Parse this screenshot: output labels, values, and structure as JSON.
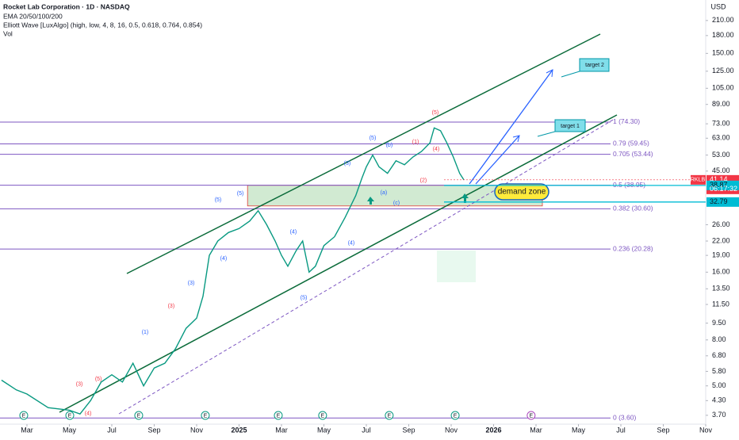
{
  "chart_data": {
    "type": "line",
    "title": "Rocket Lab Corporation · 1D · NASDAQ",
    "indicators": [
      "EMA 20/50/100/200",
      "Elliott Wave [LuxAlgo] (high, low, 4, 8, 16, 0.5, 0.618, 0.764, 0.854)",
      "Vol"
    ],
    "currency": "USD",
    "log_scale": true,
    "xlim": [
      0.73,
      34
    ],
    "ylim": [
      3.38,
      259
    ],
    "xticks": [
      {
        "value": 2,
        "label": "Mar"
      },
      {
        "value": 4,
        "label": "May"
      },
      {
        "value": 6,
        "label": "Jul"
      },
      {
        "value": 8,
        "label": "Sep"
      },
      {
        "value": 10,
        "label": "Nov"
      },
      {
        "value": 12,
        "label": "2025"
      },
      {
        "value": 14,
        "label": "Mar"
      },
      {
        "value": 16,
        "label": "May"
      },
      {
        "value": 18,
        "label": "Jul"
      },
      {
        "value": 20,
        "label": "Sep"
      },
      {
        "value": 22,
        "label": "Nov"
      },
      {
        "value": 24,
        "label": "2026"
      },
      {
        "value": 26,
        "label": "Mar"
      },
      {
        "value": 28,
        "label": "May"
      },
      {
        "value": 30,
        "label": "Jul"
      },
      {
        "value": 32,
        "label": "Sep"
      },
      {
        "value": 34,
        "label": "Nov"
      }
    ],
    "yticks": [
      {
        "value": 210,
        "label": "210.00"
      },
      {
        "value": 180,
        "label": "180.00"
      },
      {
        "value": 150,
        "label": "150.00"
      },
      {
        "value": 125,
        "label": "125.00"
      },
      {
        "value": 105,
        "label": "105.00"
      },
      {
        "value": 89,
        "label": "89.00"
      },
      {
        "value": 73,
        "label": "73.00"
      },
      {
        "value": 63,
        "label": "63.00"
      },
      {
        "value": 53,
        "label": "53.00"
      },
      {
        "value": 45,
        "label": "45.00"
      },
      {
        "value": 26,
        "label": "26.00"
      },
      {
        "value": 22,
        "label": "22.00"
      },
      {
        "value": 19,
        "label": "19.00"
      },
      {
        "value": 16,
        "label": "16.00"
      },
      {
        "value": 13.5,
        "label": "13.50"
      },
      {
        "value": 11.5,
        "label": "11.50"
      },
      {
        "value": 9.5,
        "label": "9.50"
      },
      {
        "value": 8,
        "label": "8.00"
      },
      {
        "value": 6.8,
        "label": "6.80"
      },
      {
        "value": 5.8,
        "label": "5.80"
      },
      {
        "value": 5,
        "label": "5.00"
      },
      {
        "value": 4.3,
        "label": "4.30"
      },
      {
        "value": 3.7,
        "label": "3.70"
      }
    ],
    "x": [
      0.8,
      1.5,
      2,
      3,
      4,
      4.5,
      5,
      5.5,
      6,
      6.5,
      7,
      7.5,
      8,
      8.5,
      9,
      9.5,
      10,
      10.3,
      10.6,
      11,
      11.5,
      12,
      12.5,
      12.9,
      13.3,
      13.7,
      14,
      14.3,
      14.7,
      15,
      15.3,
      15.6,
      16,
      16.5,
      17,
      17.5,
      17.8,
      18,
      18.3,
      18.6,
      19,
      19.4,
      19.8,
      20.2,
      20.6,
      21,
      21.2,
      21.5,
      21.8,
      22.1,
      22.4,
      22.6
    ],
    "series": [
      {
        "name": "RKLB",
        "color": "#089981",
        "values": [
          5.3,
          4.8,
          4.6,
          4.0,
          3.9,
          3.75,
          4.3,
          5.2,
          5.6,
          5.2,
          6.3,
          5.0,
          6.0,
          6.3,
          7.3,
          9.0,
          10.0,
          12.5,
          19,
          22,
          24,
          25,
          27,
          30,
          26,
          22,
          19,
          17,
          20,
          22,
          16,
          17,
          21,
          23,
          28,
          35,
          42,
          47,
          53,
          47,
          44,
          50,
          48,
          52,
          55,
          60,
          70,
          68,
          60,
          52,
          44,
          41.14
        ]
      }
    ],
    "fib_levels": [
      {
        "value": 74.3,
        "label": "1 (74.30)"
      },
      {
        "value": 59.45,
        "label": "0.79 (59.45)"
      },
      {
        "value": 53.44,
        "label": "0.705 (53.44)"
      },
      {
        "value": 38.95,
        "label": "0.5 (38.95)"
      },
      {
        "value": 30.6,
        "label": "0.382 (30.60)"
      },
      {
        "value": 20.28,
        "label": "0.236 (20.28)"
      },
      {
        "value": 3.6,
        "label": "0 (3.60)"
      }
    ],
    "fib_color": "#7e57c2",
    "price_tags": [
      {
        "value": 41.14,
        "label": "41.14",
        "color": "#f23645"
      },
      {
        "value": 38.87,
        "label": "38.87",
        "color": "#00bcd4"
      },
      {
        "value": 32.79,
        "label": "32.79",
        "color": "#00bcd4"
      }
    ],
    "symbol_tag": "RKLB",
    "countdown": "06:17:32",
    "demand_zone": {
      "label": "demand zone",
      "xlim": [
        12.4,
        26.3
      ],
      "ylim": [
        31.5,
        38.9
      ]
    },
    "targets": [
      "target 1",
      "target 2"
    ],
    "wave_labels": [
      {
        "text": "(5)",
        "x": 11.01,
        "y": 33.5,
        "color": "#2962ff"
      },
      {
        "text": "(5)",
        "x": 12.06,
        "y": 35.8,
        "color": "#2962ff"
      },
      {
        "text": "(5)",
        "x": 21.25,
        "y": 81.9,
        "color": "#f23645"
      },
      {
        "text": "(5)",
        "x": 18.3,
        "y": 63.2,
        "color": "#2962ff"
      },
      {
        "text": "(3)",
        "x": 9.74,
        "y": 14.3,
        "color": "#2962ff"
      },
      {
        "text": "(1)",
        "x": 7.57,
        "y": 8.66,
        "color": "#2962ff"
      },
      {
        "text": "(3)",
        "x": 8.8,
        "y": 11.3,
        "color": "#f23645"
      },
      {
        "text": "(5)",
        "x": 5.37,
        "y": 5.37,
        "color": "#f23645"
      },
      {
        "text": "(3)",
        "x": 4.47,
        "y": 5.08,
        "color": "#f23645"
      },
      {
        "text": "(4)",
        "x": 4.88,
        "y": 3.76,
        "color": "#f23645"
      },
      {
        "text": "(4)",
        "x": 11.27,
        "y": 18.4,
        "color": "#2962ff"
      },
      {
        "text": "(4)",
        "x": 14.56,
        "y": 24.1,
        "color": "#2962ff"
      },
      {
        "text": "(5)",
        "x": 15.05,
        "y": 12.3,
        "color": "#2962ff"
      },
      {
        "text": "(4)",
        "x": 17.29,
        "y": 21.5,
        "color": "#2962ff"
      },
      {
        "text": "(a)",
        "x": 18.82,
        "y": 36.1,
        "color": "#2962ff"
      },
      {
        "text": "(c)",
        "x": 19.42,
        "y": 32.5,
        "color": "#2962ff"
      },
      {
        "text": "(b)",
        "x": 19.08,
        "y": 58.7,
        "color": "#2962ff"
      },
      {
        "text": "(1)",
        "x": 20.32,
        "y": 60.6,
        "color": "#f23645"
      },
      {
        "text": "(4)",
        "x": 21.29,
        "y": 56.4,
        "color": "#f23645"
      },
      {
        "text": "(2)",
        "x": 20.69,
        "y": 40.8,
        "color": "#f23645"
      },
      {
        "text": "(3)",
        "x": 17.1,
        "y": 48.7,
        "color": "#2962ff"
      }
    ],
    "earnings_marker": "E",
    "earnings_x": [
      1.85,
      4.02,
      7.27,
      10.41,
      13.85,
      15.94,
      19.08,
      22.19,
      25.77
    ]
  }
}
